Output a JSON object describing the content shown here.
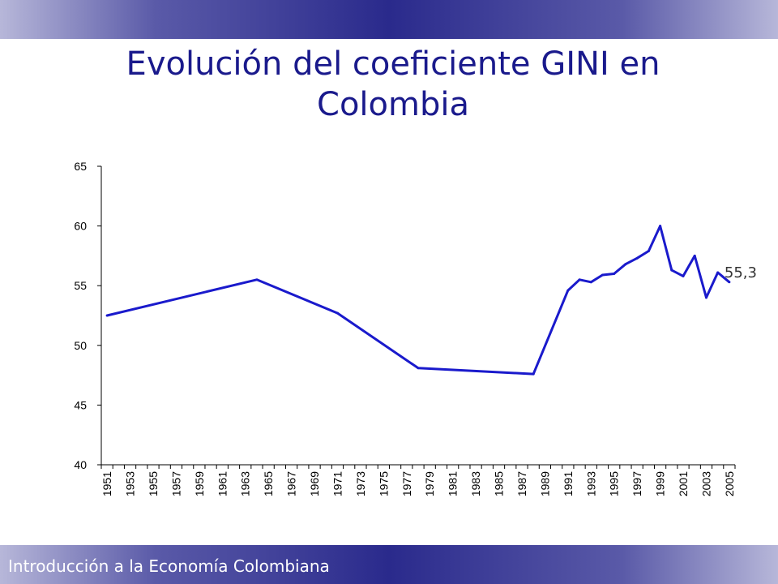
{
  "slide": {
    "title": "Evolución del coeficiente GINI en Colombia",
    "footer": "Introducción a la Economía Colombiana"
  },
  "colors": {
    "line": "#1a1acc",
    "title": "#1a1a8c",
    "band_dark": "#2a2a8c",
    "band_light": "#b7b7d9"
  },
  "chart_data": {
    "type": "line",
    "title": "",
    "xlabel": "",
    "ylabel": "",
    "ylim": [
      40,
      65
    ],
    "yticks": [
      40,
      45,
      50,
      55,
      60,
      65
    ],
    "xlim": [
      1951,
      2005
    ],
    "xtick_labels": [
      "1951",
      "1953",
      "1955",
      "1957",
      "1959",
      "1961",
      "1963",
      "1965",
      "1967",
      "1969",
      "1971",
      "1973",
      "1975",
      "1977",
      "1979",
      "1981",
      "1983",
      "1985",
      "1987",
      "1989",
      "1991",
      "1993",
      "1995",
      "1997",
      "1999",
      "2001",
      "2003",
      "2005"
    ],
    "grid": false,
    "legend": "none",
    "series": [
      {
        "x": [
          1951,
          1964,
          1971,
          1978,
          1988,
          1991,
          1992,
          1993,
          1994,
          1995,
          1996,
          1997,
          1998,
          1999,
          2000,
          2001,
          2002,
          2003,
          2004,
          2005
        ],
        "values": [
          52.5,
          55.5,
          52.7,
          48.1,
          47.6,
          54.6,
          55.5,
          55.3,
          55.9,
          56.0,
          56.8,
          57.3,
          57.9,
          60.0,
          56.3,
          55.8,
          57.5,
          54.0,
          56.1,
          55.3
        ]
      }
    ],
    "annotations": [
      {
        "text": "55,3",
        "x": 2005,
        "y": 55.3
      }
    ]
  }
}
